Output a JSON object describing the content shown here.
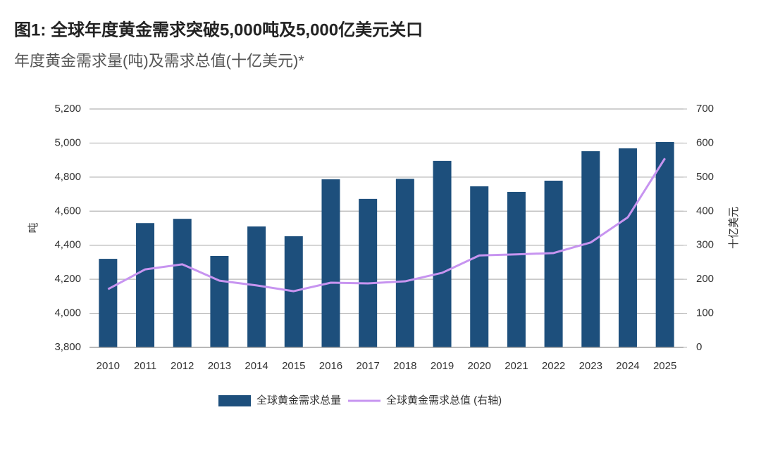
{
  "chart_data": {
    "type": "bar_line",
    "title": "图1: 全球年度黄金需求突破5,000吨及5,000亿美元关口",
    "subtitle": "年度黄金需求量(吨)及需求总值(十亿美元)*",
    "ylabel": "吨",
    "y2label": "十亿美元",
    "categories": [
      "2010",
      "2011",
      "2012",
      "2013",
      "2014",
      "2015",
      "2016",
      "2017",
      "2018",
      "2019",
      "2020",
      "2021",
      "2022",
      "2023",
      "2024",
      "2025"
    ],
    "series": [
      {
        "name": "全球黄金需求总量",
        "type": "bar",
        "color": "#1d4f7c",
        "axis": "y",
        "values": [
          4320,
          4530,
          4555,
          4337,
          4510,
          4453,
          4787,
          4672,
          4790,
          4895,
          4746,
          4713,
          4779,
          4952,
          4969,
          5006
        ]
      },
      {
        "name": "全球黄金需求总值 (右轴)",
        "type": "line",
        "color": "#c794f0",
        "axis": "y2",
        "values": [
          171,
          229,
          244,
          196,
          182,
          165,
          190,
          188,
          194,
          219,
          270,
          273,
          277,
          308,
          382,
          555
        ]
      }
    ],
    "ylim": [
      3800,
      5200
    ],
    "yticks": [
      {
        "value": 3800,
        "label": "3,800"
      },
      {
        "value": 4000,
        "label": "4,000"
      },
      {
        "value": 4200,
        "label": "4,200"
      },
      {
        "value": 4400,
        "label": "4,400"
      },
      {
        "value": 4600,
        "label": "4,600"
      },
      {
        "value": 4800,
        "label": "4,800"
      },
      {
        "value": 5000,
        "label": "5,000"
      },
      {
        "value": 5200,
        "label": "5,200"
      }
    ],
    "y2lim": [
      0,
      700
    ],
    "y2ticks": [
      0,
      100,
      200,
      300,
      400,
      500,
      600,
      700
    ],
    "grid": true,
    "legend": "bottom"
  }
}
